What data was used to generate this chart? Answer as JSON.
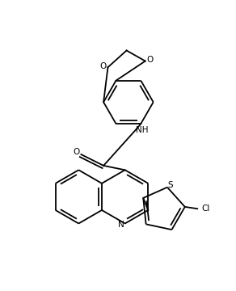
{
  "bg_color": "#ffffff",
  "line_color": "#000000",
  "figsize": [
    2.92,
    3.6
  ],
  "dpi": 100,
  "lw": 1.3,
  "font_size": 7.5,
  "xlim": [
    0,
    292
  ],
  "ylim": [
    0,
    360
  ]
}
